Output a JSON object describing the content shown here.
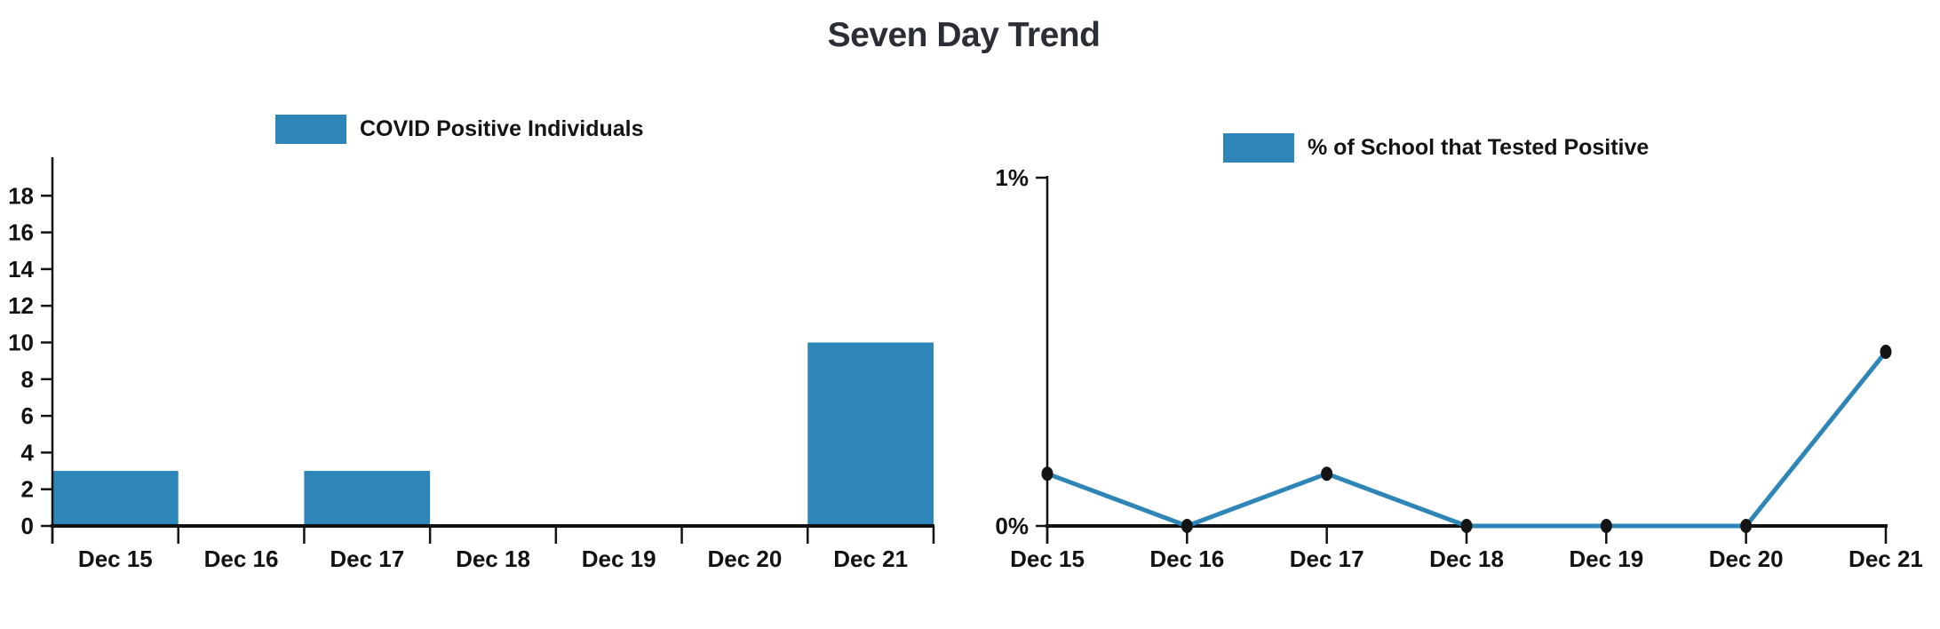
{
  "title": "Seven Day Trend",
  "chart_data": [
    {
      "type": "bar",
      "legend": "COVID Positive Individuals",
      "categories": [
        "Dec 15",
        "Dec 16",
        "Dec 17",
        "Dec 18",
        "Dec 19",
        "Dec 20",
        "Dec 21"
      ],
      "values": [
        3,
        0,
        3,
        0,
        0,
        0,
        10
      ],
      "yticks": [
        0,
        2,
        4,
        6,
        8,
        10,
        12,
        14,
        16,
        18
      ],
      "ylim": [
        0,
        20
      ],
      "xlabel": "",
      "ylabel": "",
      "grid": false,
      "legend_position": "top",
      "color": "#2E86B8"
    },
    {
      "type": "line",
      "legend": "% of School that Tested Positive",
      "categories": [
        "Dec 15",
        "Dec 16",
        "Dec 17",
        "Dec 18",
        "Dec 19",
        "Dec 20",
        "Dec 21"
      ],
      "values": [
        0.15,
        0,
        0.15,
        0,
        0,
        0,
        0.5
      ],
      "yticks": [
        0,
        1
      ],
      "ytick_labels": [
        "0%",
        "1%"
      ],
      "ylim": [
        0,
        1
      ],
      "xlabel": "",
      "ylabel": "",
      "grid": false,
      "legend_position": "top",
      "color": "#2E86B8",
      "marker_color": "#141414"
    }
  ],
  "colors": {
    "accent_blue": "#2E86B8",
    "axis_black": "#121212",
    "title_dark": "#2B2E34"
  }
}
